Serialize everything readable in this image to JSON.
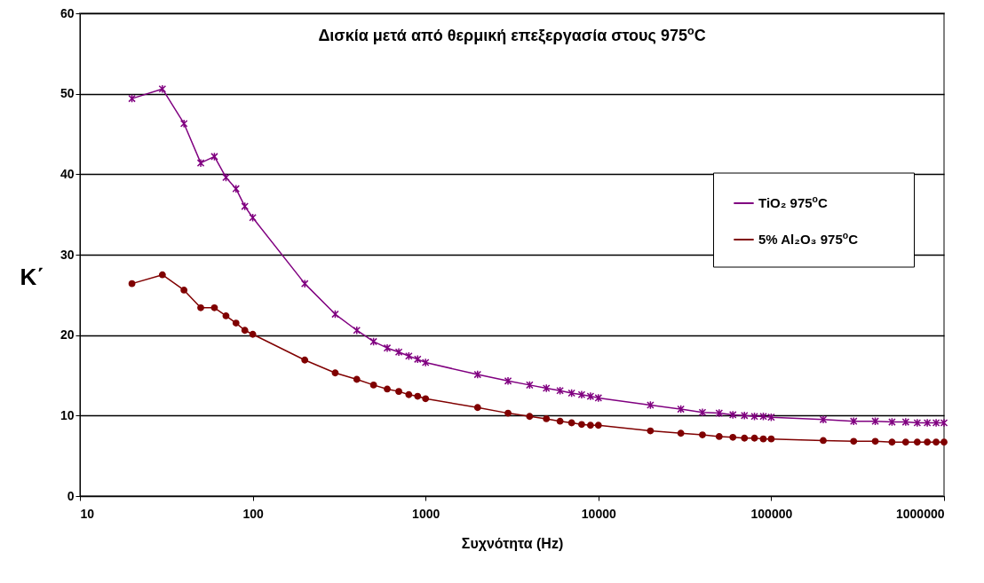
{
  "chart_data": {
    "type": "line",
    "title": "Δισκία μετά από θερμική επεξεργασία στους 975$^{o}$C",
    "xlabel": "Συχνότητα (Hz)",
    "ylabel": "K΄",
    "log": "x",
    "xlim": [
      10,
      1000000
    ],
    "xticks": [
      10,
      100,
      1000,
      10000,
      100000,
      1000000
    ],
    "ylim": [
      0,
      60
    ],
    "yticks": [
      0,
      10,
      20,
      30,
      40,
      50,
      60
    ],
    "grid": "y",
    "legend": "right",
    "x": [
      20,
      30,
      40,
      50,
      60,
      70,
      80,
      90,
      100,
      200,
      300,
      400,
      500,
      600,
      700,
      800,
      900,
      1000,
      2000,
      3000,
      4000,
      5000,
      6000,
      7000,
      8000,
      9000,
      10000,
      20000,
      30000,
      40000,
      50000,
      60000,
      70000,
      80000,
      90000,
      100000,
      200000,
      300000,
      400000,
      500000,
      600000,
      700000,
      800000,
      900000,
      1000000
    ],
    "series": [
      {
        "name": "TiO₂ 975$^{o}$C",
        "color": "#800080",
        "marker": "cross",
        "values": [
          49.4,
          50.6,
          46.3,
          41.4,
          42.2,
          39.6,
          38.2,
          36.0,
          34.6,
          26.4,
          22.6,
          20.6,
          19.2,
          18.4,
          17.9,
          17.4,
          17.0,
          16.6,
          15.1,
          14.3,
          13.8,
          13.4,
          13.1,
          12.8,
          12.6,
          12.4,
          12.2,
          11.3,
          10.8,
          10.4,
          10.3,
          10.1,
          10.0,
          9.9,
          9.9,
          9.8,
          9.5,
          9.3,
          9.3,
          9.2,
          9.2,
          9.1,
          9.1,
          9.1,
          9.1
        ]
      },
      {
        "name": "5% Al₂O₃ 975$^{o}$C",
        "color": "#800000",
        "marker": "circle",
        "values": [
          26.4,
          27.5,
          25.6,
          23.4,
          23.4,
          22.4,
          21.5,
          20.6,
          20.1,
          16.9,
          15.3,
          14.5,
          13.8,
          13.3,
          13.0,
          12.6,
          12.4,
          12.1,
          11.0,
          10.3,
          9.9,
          9.6,
          9.3,
          9.1,
          8.9,
          8.8,
          8.8,
          8.1,
          7.8,
          7.6,
          7.4,
          7.3,
          7.2,
          7.2,
          7.1,
          7.1,
          6.9,
          6.8,
          6.8,
          6.7,
          6.7,
          6.7,
          6.7,
          6.7,
          6.7
        ]
      }
    ]
  }
}
